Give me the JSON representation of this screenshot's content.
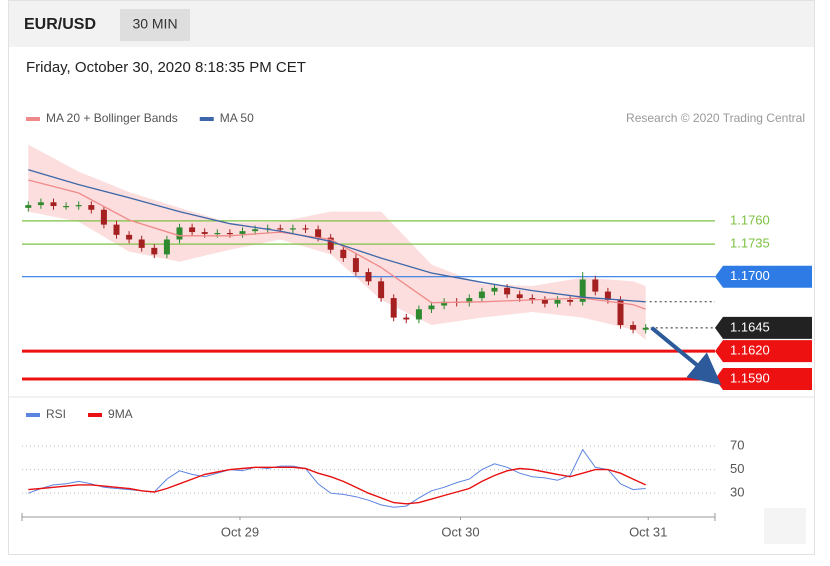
{
  "header": {
    "symbol": "EUR/USD",
    "interval": "30 MIN",
    "timestamp": "Friday, October 30, 2020 8:18:35 PM CET"
  },
  "chart_data": [
    {
      "type": "candlestick",
      "credit": "Research © 2020 Trading Central",
      "xlim": [
        -0.5,
        54.5
      ],
      "ylim": [
        1.1576,
        1.1847
      ],
      "up_color": "#2f8a2f",
      "down_color": "#a52020",
      "open": [
        1.1774,
        1.1777,
        1.178,
        1.1776,
        1.1776,
        1.1777,
        1.1772,
        1.1756,
        1.1745,
        1.174,
        1.1731,
        1.1724,
        1.174,
        1.1753,
        1.1748,
        1.1746,
        1.1747,
        1.1746,
        1.1749,
        1.1751,
        1.1752,
        1.1751,
        1.1752,
        1.1751,
        1.1742,
        1.1729,
        1.172,
        1.1705,
        1.1695,
        1.1677,
        1.1656,
        1.1654,
        1.1665,
        1.1669,
        1.1673,
        1.1672,
        1.1677,
        1.1684,
        1.1688,
        1.1681,
        1.1677,
        1.1675,
        1.1671,
        1.1675,
        1.1673,
        1.1697,
        1.1684,
        1.1675,
        1.1648,
        1.1643
      ],
      "high": [
        1.1781,
        1.1784,
        1.1784,
        1.178,
        1.1781,
        1.1781,
        1.1776,
        1.176,
        1.1749,
        1.1744,
        1.1735,
        1.1744,
        1.1757,
        1.1757,
        1.1752,
        1.1751,
        1.1751,
        1.1753,
        1.1755,
        1.1756,
        1.1756,
        1.1756,
        1.1756,
        1.1755,
        1.1746,
        1.1733,
        1.1724,
        1.1709,
        1.1699,
        1.1681,
        1.166,
        1.1669,
        1.1673,
        1.1677,
        1.1677,
        1.1681,
        1.1688,
        1.1692,
        1.1692,
        1.1685,
        1.1681,
        1.1679,
        1.1679,
        1.1679,
        1.1705,
        1.1701,
        1.1688,
        1.1679,
        1.1652,
        1.1649
      ],
      "low": [
        1.177,
        1.1773,
        1.1772,
        1.1772,
        1.1772,
        1.1768,
        1.1752,
        1.1741,
        1.1736,
        1.1727,
        1.172,
        1.172,
        1.1736,
        1.1744,
        1.1742,
        1.1742,
        1.1742,
        1.1742,
        1.1745,
        1.1747,
        1.1747,
        1.1747,
        1.1747,
        1.1738,
        1.1725,
        1.1716,
        1.1701,
        1.1691,
        1.1673,
        1.1652,
        1.165,
        1.165,
        1.1661,
        1.1665,
        1.1668,
        1.1668,
        1.1673,
        1.168,
        1.1677,
        1.1673,
        1.1671,
        1.1667,
        1.1667,
        1.1669,
        1.1669,
        1.168,
        1.1671,
        1.1644,
        1.1639,
        1.1639
      ],
      "close": [
        1.1777,
        1.178,
        1.1776,
        1.1776,
        1.1777,
        1.1772,
        1.1756,
        1.1745,
        1.174,
        1.1731,
        1.1724,
        1.174,
        1.1753,
        1.1748,
        1.1746,
        1.1747,
        1.1746,
        1.1749,
        1.1751,
        1.1752,
        1.1751,
        1.1752,
        1.1751,
        1.1742,
        1.1729,
        1.172,
        1.1705,
        1.1695,
        1.1677,
        1.1656,
        1.1654,
        1.1665,
        1.1669,
        1.1673,
        1.1672,
        1.1677,
        1.1684,
        1.1688,
        1.1681,
        1.1677,
        1.1675,
        1.1671,
        1.1675,
        1.1673,
        1.1697,
        1.1684,
        1.1675,
        1.1648,
        1.1643,
        1.1645
      ],
      "series": [
        {
          "name": "MA 20 + Bollinger Bands",
          "color": "#f08a8a",
          "band_color": "#fbd3d3",
          "x": [
            0,
            4,
            8,
            12,
            16,
            20,
            24,
            28,
            32,
            36,
            40,
            44,
            48,
            49
          ],
          "values": [
            1.1804,
            1.179,
            1.1761,
            1.1744,
            1.1744,
            1.1748,
            1.174,
            1.171,
            1.1672,
            1.1673,
            1.1675,
            1.1677,
            1.167,
            1.1665
          ],
          "upper": [
            1.1842,
            1.1813,
            1.1791,
            1.1774,
            1.1758,
            1.1759,
            1.177,
            1.177,
            1.1713,
            1.1692,
            1.169,
            1.1699,
            1.1695,
            1.169
          ],
          "lower": [
            1.177,
            1.1759,
            1.1727,
            1.1716,
            1.1729,
            1.174,
            1.1724,
            1.1675,
            1.1648,
            1.1656,
            1.1662,
            1.1656,
            1.1643,
            1.1632
          ]
        },
        {
          "name": "MA 50",
          "color": "#3d67a8",
          "x": [
            0,
            4,
            8,
            12,
            16,
            20,
            24,
            28,
            32,
            36,
            40,
            44,
            48,
            49
          ],
          "values": [
            1.1815,
            1.1799,
            1.1785,
            1.177,
            1.1757,
            1.1749,
            1.1738,
            1.172,
            1.1704,
            1.1694,
            1.1685,
            1.1678,
            1.1674,
            1.1673
          ]
        }
      ],
      "levels": [
        {
          "value": 1.176,
          "label": "1.1760",
          "color": "#7cc142",
          "line": "thin",
          "tag": false
        },
        {
          "value": 1.1735,
          "label": "1.1735",
          "color": "#7cc142",
          "line": "thin",
          "tag": false
        },
        {
          "value": 1.17,
          "label": "1.1700",
          "color": "#2f7be6",
          "line": "thin",
          "tag": true
        },
        {
          "value": 1.1645,
          "label": "1.1645",
          "color": "#222222",
          "line": "dotted",
          "tag": true
        },
        {
          "value": 1.162,
          "label": "1.1620",
          "color": "#ee1111",
          "line": "thick",
          "tag": true
        },
        {
          "value": 1.159,
          "label": "1.1590",
          "color": "#ee1111",
          "line": "thick",
          "tag": true
        }
      ]
    },
    {
      "type": "line",
      "xlim": [
        -0.5,
        54.5
      ],
      "ylim": [
        14,
        82
      ],
      "yticks": [
        70,
        50,
        30
      ],
      "xticks": [
        {
          "value": 16.8,
          "label": "Oct 29"
        },
        {
          "value": 34.3,
          "label": "Oct 30"
        },
        {
          "value": 49.2,
          "label": "Oct 31"
        }
      ],
      "series": [
        {
          "name": "RSI",
          "color": "#5b84e0",
          "values": [
            30,
            34,
            37,
            38,
            40,
            38,
            35,
            34,
            33,
            32,
            31,
            42,
            49,
            46,
            44,
            47,
            50,
            49,
            52,
            51,
            53,
            53,
            51,
            38,
            30,
            29,
            27,
            24,
            20,
            18,
            19,
            26,
            32,
            35,
            39,
            42,
            50,
            55,
            52,
            47,
            44,
            43,
            41,
            45,
            67,
            52,
            50,
            38,
            33,
            34
          ]
        },
        {
          "name": "9MA",
          "color": "#e81010",
          "values": [
            33,
            34,
            35,
            36,
            37,
            37,
            36,
            35,
            34,
            32,
            31,
            34,
            38,
            42,
            46,
            48,
            50,
            51,
            52,
            52,
            52,
            52,
            51,
            47,
            44,
            40,
            35,
            30,
            26,
            22,
            21,
            22,
            25,
            28,
            31,
            34,
            40,
            45,
            49,
            51,
            50,
            48,
            46,
            44,
            47,
            50,
            50,
            47,
            42,
            37
          ]
        }
      ]
    }
  ]
}
